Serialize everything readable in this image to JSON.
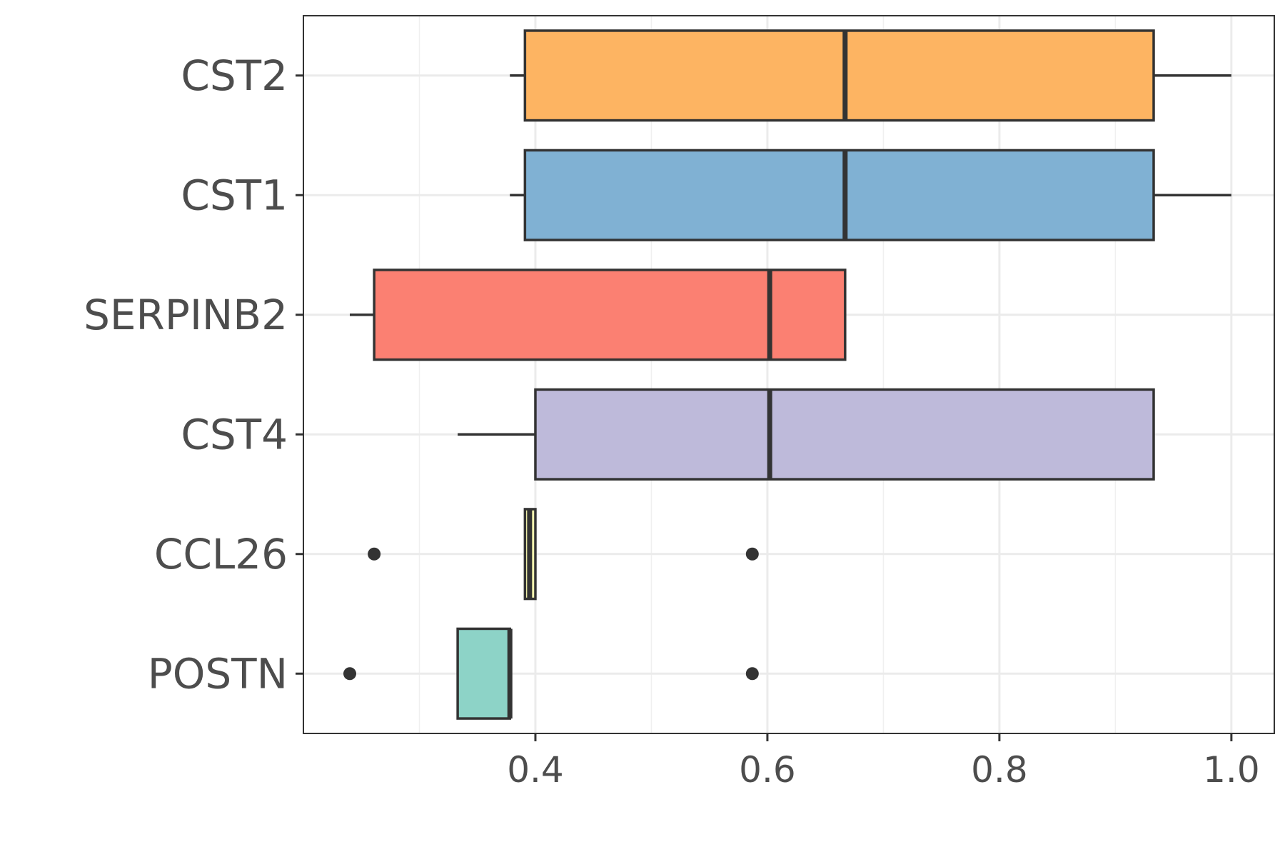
{
  "chart_data": {
    "type": "boxplot",
    "orientation": "horizontal",
    "title": "",
    "xlabel": "",
    "ylabel": "",
    "xlim": [
      0.2,
      1.037
    ],
    "x_ticks": [
      0.4,
      0.6,
      0.8,
      1.0
    ],
    "x_tick_labels": [
      "0.4",
      "0.6",
      "0.8",
      "1.0"
    ],
    "grid": true,
    "categories": [
      "CST2",
      "CST1",
      "SERPINB2",
      "CST4",
      "CCL26",
      "POSTN"
    ],
    "series": [
      {
        "category": "CST2",
        "color": "#FDB462",
        "whisker_low": 0.378,
        "q1": 0.391,
        "median": 0.667,
        "q3": 0.933,
        "whisker_high": 1.0,
        "outliers": []
      },
      {
        "category": "CST1",
        "color": "#80B1D3",
        "whisker_low": 0.378,
        "q1": 0.391,
        "median": 0.667,
        "q3": 0.933,
        "whisker_high": 1.0,
        "outliers": []
      },
      {
        "category": "SERPINB2",
        "color": "#FB8072",
        "whisker_low": 0.24,
        "q1": 0.261,
        "median": 0.602,
        "q3": 0.667,
        "whisker_high": 0.667,
        "outliers": []
      },
      {
        "category": "CST4",
        "color": "#BEBADA",
        "whisker_low": 0.333,
        "q1": 0.4,
        "median": 0.602,
        "q3": 0.933,
        "whisker_high": 0.933,
        "outliers": []
      },
      {
        "category": "CCL26",
        "color": "#FFFFB3",
        "whisker_low": 0.391,
        "q1": 0.391,
        "median": 0.395,
        "q3": 0.4,
        "whisker_high": 0.4,
        "outliers": [
          0.261,
          0.587
        ]
      },
      {
        "category": "POSTN",
        "color": "#8DD3C7",
        "whisker_low": 0.333,
        "q1": 0.333,
        "median": 0.378,
        "q3": 0.378,
        "whisker_high": 0.378,
        "outliers": [
          0.24,
          0.587
        ]
      }
    ]
  }
}
